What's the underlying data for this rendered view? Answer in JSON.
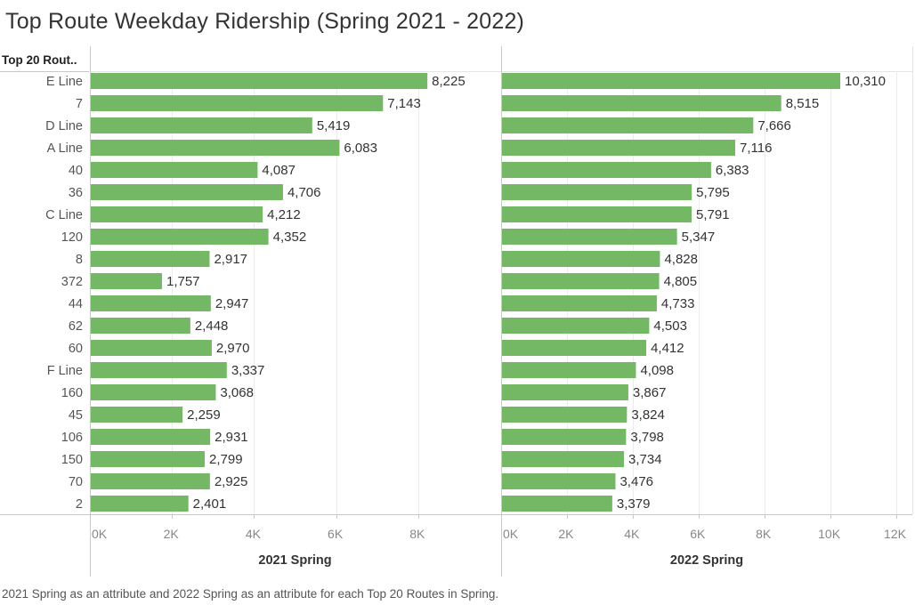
{
  "title": "Top Route Weekday Ridership (Spring 2021 - 2022)",
  "row_header": "Top 20 Rout..",
  "caption": "2021 Spring as an attribute and 2022 Spring as an attribute for each Top 20 Routes in Spring.",
  "colors": {
    "bar": "#74b866",
    "grid": "#ececec",
    "axis": "#c8c8c8"
  },
  "chart_data": [
    {
      "type": "bar",
      "orientation": "horizontal",
      "categories": [
        "E Line",
        "7",
        "D Line",
        "A Line",
        "40",
        "36",
        "C Line",
        "120",
        "8",
        "372",
        "44",
        "62",
        "60",
        "F Line",
        "160",
        "45",
        "106",
        "150",
        "70",
        "2"
      ],
      "values": [
        8225,
        7143,
        5419,
        6083,
        4087,
        4706,
        4212,
        4352,
        2917,
        1757,
        2947,
        2448,
        2970,
        3337,
        3068,
        2259,
        2931,
        2799,
        2925,
        2401
      ],
      "value_labels": [
        "8,225",
        "7,143",
        "5,419",
        "6,083",
        "4,087",
        "4,706",
        "4,212",
        "4,352",
        "2,917",
        "1,757",
        "2,947",
        "2,448",
        "2,970",
        "3,337",
        "3,068",
        "2,259",
        "2,931",
        "2,799",
        "2,925",
        "2,401"
      ],
      "xlabel": "2021 Spring",
      "xlim": [
        0,
        10000
      ],
      "ticks": [
        0,
        2000,
        4000,
        6000,
        8000
      ],
      "tick_labels": [
        "0K",
        "2K",
        "4K",
        "6K",
        "8K"
      ],
      "grid": true
    },
    {
      "type": "bar",
      "orientation": "horizontal",
      "categories": [
        "E Line",
        "7",
        "D Line",
        "A Line",
        "40",
        "36",
        "C Line",
        "120",
        "8",
        "372",
        "44",
        "62",
        "60",
        "F Line",
        "160",
        "45",
        "106",
        "150",
        "70",
        "2"
      ],
      "values": [
        10310,
        8515,
        7666,
        7116,
        6383,
        5795,
        5791,
        5347,
        4828,
        4805,
        4733,
        4503,
        4412,
        4098,
        3867,
        3824,
        3798,
        3734,
        3476,
        3379
      ],
      "value_labels": [
        "10,310",
        "8,515",
        "7,666",
        "7,116",
        "6,383",
        "5,795",
        "5,791",
        "5,347",
        "4,828",
        "4,805",
        "4,733",
        "4,503",
        "4,412",
        "4,098",
        "3,867",
        "3,824",
        "3,798",
        "3,734",
        "3,476",
        "3,379"
      ],
      "xlabel": "2022 Spring",
      "xlim": [
        0,
        12500
      ],
      "ticks": [
        0,
        2000,
        4000,
        6000,
        8000,
        10000,
        12000
      ],
      "tick_labels": [
        "0K",
        "2K",
        "4K",
        "6K",
        "8K",
        "10K",
        "12K"
      ],
      "grid": true
    }
  ]
}
